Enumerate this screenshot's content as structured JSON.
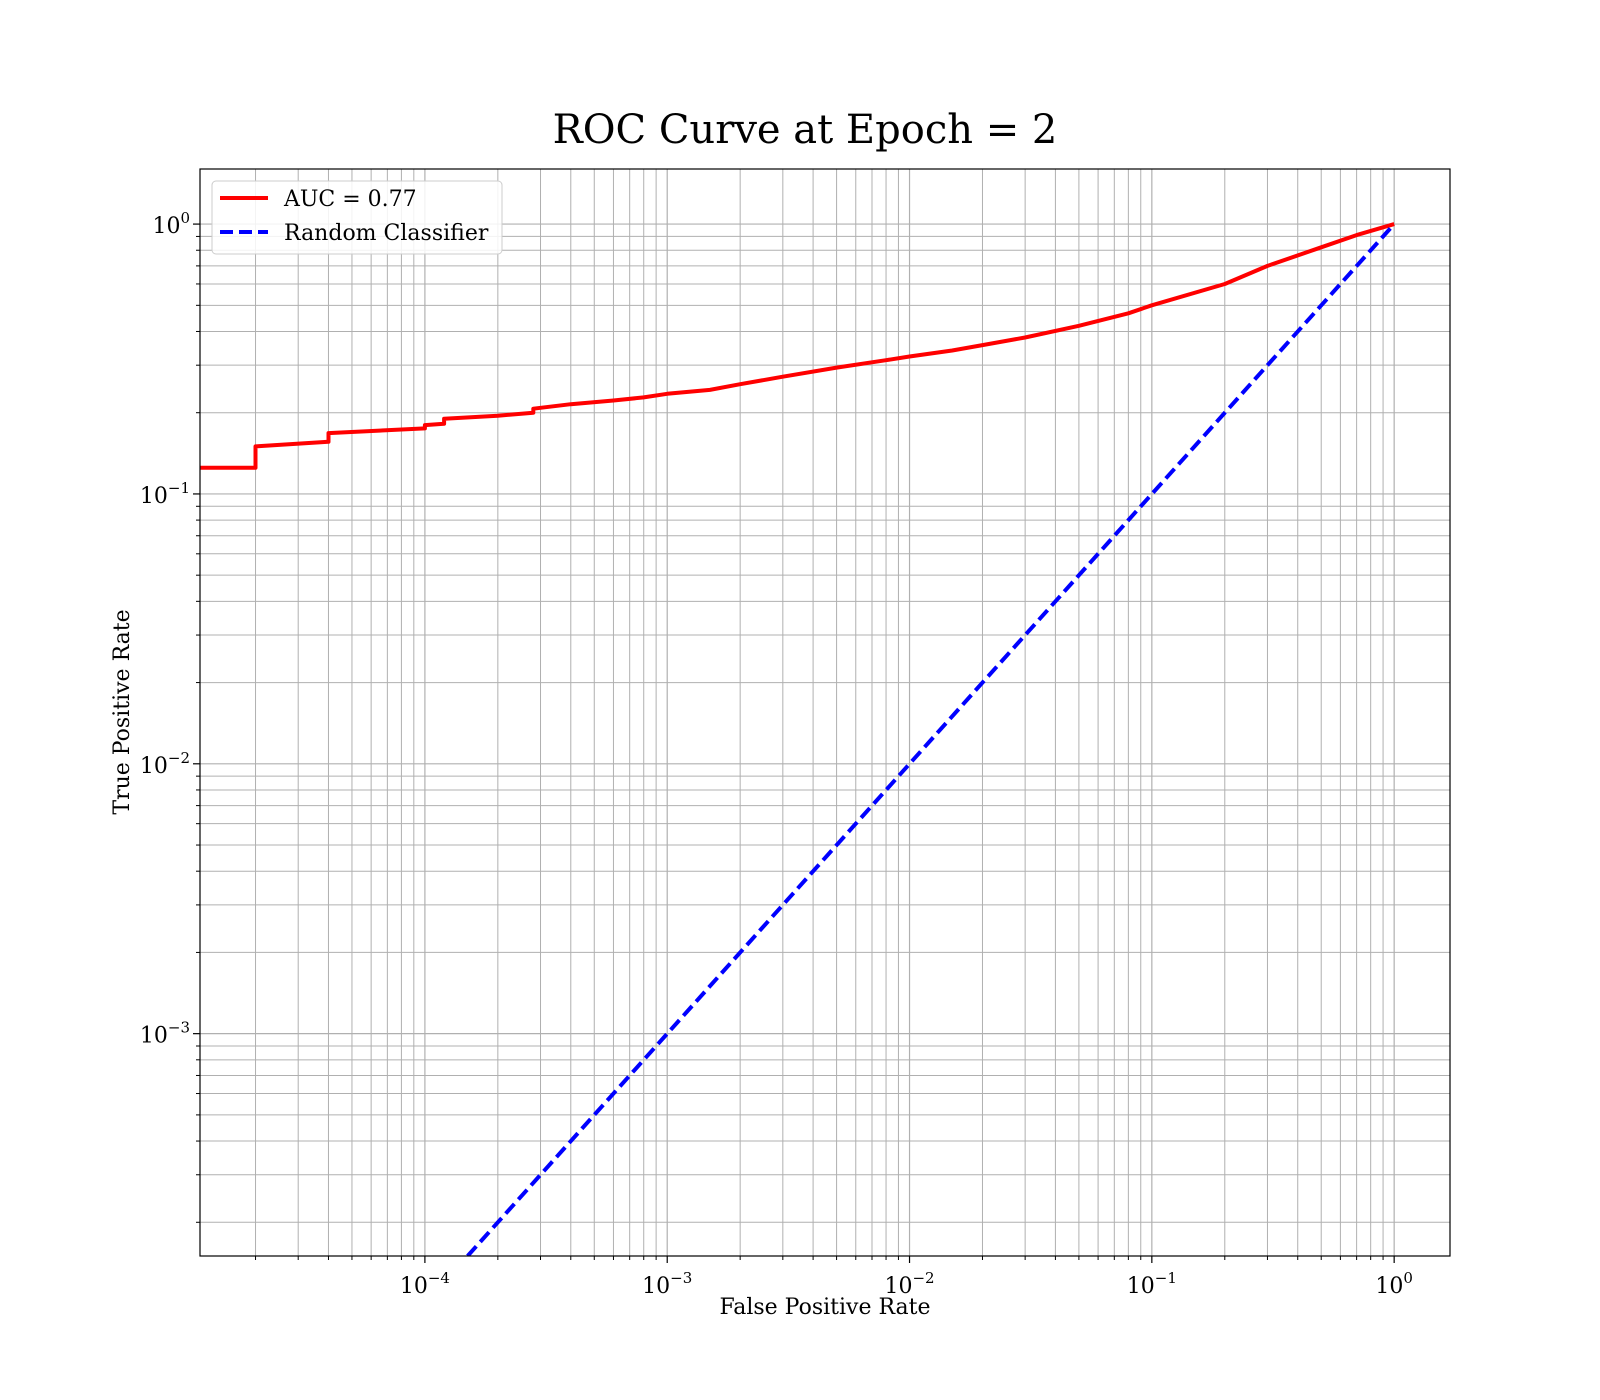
{
  "chart_data": {
    "type": "line",
    "title": "ROC Curve at Epoch = 2",
    "xlabel": "False Positive Rate",
    "ylabel": "True Positive Rate",
    "xscale": "log",
    "yscale": "log",
    "xlim": [
      1.18e-05,
      1.7
    ],
    "ylim": [
      0.00015,
      1.6
    ],
    "grid": "both (major and minor)",
    "legend_position": "upper-left",
    "x_ticks": [
      {
        "value": 0.0001,
        "base": "10",
        "exp": "−4"
      },
      {
        "value": 0.001,
        "base": "10",
        "exp": "−3"
      },
      {
        "value": 0.01,
        "base": "10",
        "exp": "−2"
      },
      {
        "value": 0.1,
        "base": "10",
        "exp": "−1"
      },
      {
        "value": 1,
        "base": "10",
        "exp": "0"
      }
    ],
    "y_ticks": [
      {
        "value": 0.001,
        "base": "10",
        "exp": "−3"
      },
      {
        "value": 0.01,
        "base": "10",
        "exp": "−2"
      },
      {
        "value": 0.1,
        "base": "10",
        "exp": "−1"
      },
      {
        "value": 1,
        "base": "10",
        "exp": "0"
      }
    ],
    "series": [
      {
        "name": "AUC = 0.77",
        "color": "#ff0000",
        "style": "solid",
        "x": [
          1.18e-05,
          2e-05,
          2e-05,
          4e-05,
          4e-05,
          0.0001,
          0.0001,
          0.00012,
          0.00012,
          0.0002,
          0.00028,
          0.00028,
          0.0004,
          0.0006,
          0.0008,
          0.001,
          0.0015,
          0.002,
          0.003,
          0.005,
          0.008,
          0.01,
          0.015,
          0.02,
          0.03,
          0.05,
          0.08,
          0.1,
          0.2,
          0.3,
          0.5,
          0.7,
          1.0
        ],
        "y": [
          0.125,
          0.125,
          0.15,
          0.156,
          0.168,
          0.175,
          0.18,
          0.182,
          0.19,
          0.195,
          0.2,
          0.207,
          0.215,
          0.222,
          0.228,
          0.235,
          0.243,
          0.255,
          0.272,
          0.294,
          0.313,
          0.323,
          0.34,
          0.356,
          0.38,
          0.42,
          0.467,
          0.5,
          0.6,
          0.7,
          0.82,
          0.91,
          1.0
        ]
      },
      {
        "name": "Random Classifier",
        "color": "#0000ff",
        "style": "dashed",
        "x": [
          0.00015,
          1.0
        ],
        "y": [
          0.00015,
          1.0
        ]
      }
    ]
  }
}
